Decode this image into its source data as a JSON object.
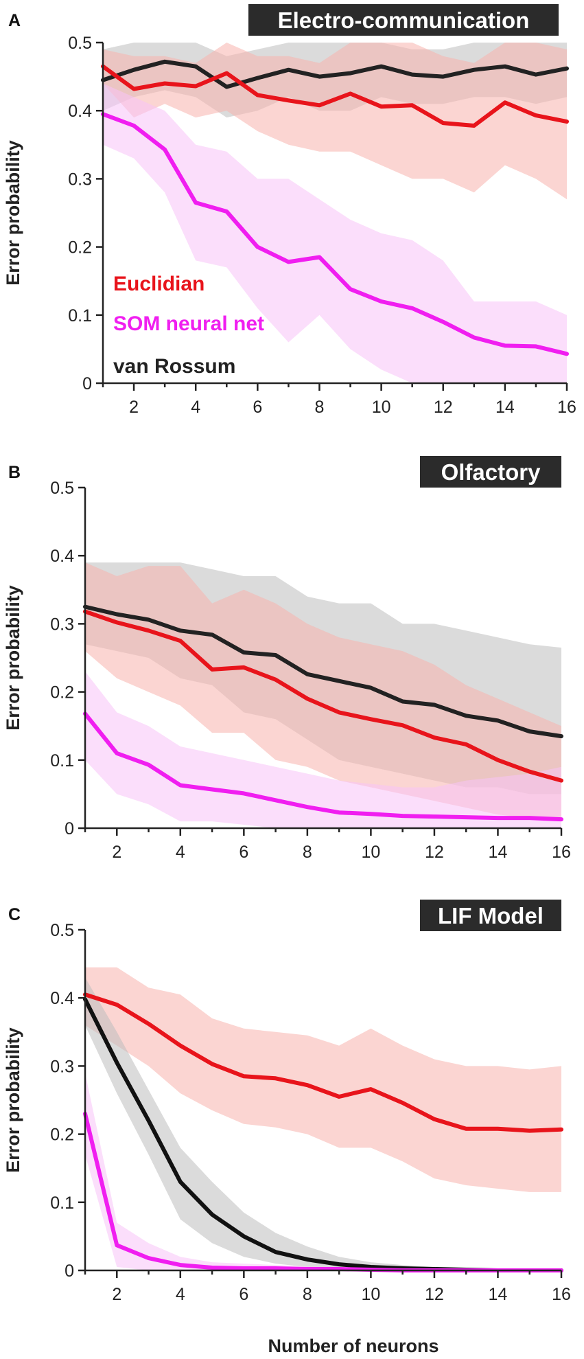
{
  "figure": {
    "xlabel": "Number of neurons",
    "legend": [
      {
        "label": "Euclidian",
        "color": "#e8141b"
      },
      {
        "label": "SOM neural net",
        "color": "#f01ef0"
      },
      {
        "label": "van Rossum",
        "color": "#222222"
      }
    ]
  },
  "chart_data": [
    {
      "type": "line",
      "panel": "A",
      "title": "Electro-communication",
      "xlabel": "",
      "ylabel": "Error probability",
      "xlim": [
        1,
        16
      ],
      "ylim": [
        0,
        0.5
      ],
      "xticks": [
        2,
        4,
        6,
        8,
        10,
        12,
        14,
        16
      ],
      "yticks": [
        0,
        0.1,
        0.2,
        0.3,
        0.4,
        0.5
      ],
      "x": [
        1,
        2,
        3,
        4,
        5,
        6,
        7,
        8,
        9,
        10,
        11,
        12,
        13,
        14,
        15,
        16
      ],
      "series": [
        {
          "name": "van Rossum",
          "color": "#222222",
          "band_color": "#bdbdbd",
          "values": [
            0.445,
            0.46,
            0.472,
            0.465,
            0.435,
            0.448,
            0.46,
            0.45,
            0.455,
            0.465,
            0.453,
            0.45,
            0.46,
            0.465,
            0.453,
            0.462
          ],
          "lower": [
            0.4,
            0.42,
            0.43,
            0.42,
            0.39,
            0.4,
            0.42,
            0.4,
            0.4,
            0.42,
            0.41,
            0.41,
            0.42,
            0.42,
            0.41,
            0.42
          ],
          "upper": [
            0.49,
            0.5,
            0.5,
            0.5,
            0.48,
            0.49,
            0.5,
            0.5,
            0.5,
            0.5,
            0.49,
            0.49,
            0.5,
            0.5,
            0.5,
            0.5
          ]
        },
        {
          "name": "Euclidian",
          "color": "#e8141b",
          "band_color": "#f7b3ad",
          "values": [
            0.465,
            0.432,
            0.44,
            0.436,
            0.455,
            0.423,
            0.415,
            0.408,
            0.425,
            0.406,
            0.408,
            0.382,
            0.378,
            0.412,
            0.393,
            0.384
          ],
          "lower": [
            0.44,
            0.39,
            0.41,
            0.39,
            0.4,
            0.37,
            0.35,
            0.34,
            0.34,
            0.32,
            0.3,
            0.3,
            0.28,
            0.32,
            0.3,
            0.27
          ],
          "upper": [
            0.49,
            0.48,
            0.48,
            0.47,
            0.5,
            0.48,
            0.48,
            0.47,
            0.5,
            0.5,
            0.5,
            0.48,
            0.47,
            0.5,
            0.5,
            0.49
          ]
        },
        {
          "name": "SOM neural net",
          "color": "#f01ef0",
          "band_color": "#f8c3f8",
          "values": [
            0.395,
            0.378,
            0.343,
            0.265,
            0.252,
            0.2,
            0.178,
            0.185,
            0.138,
            0.12,
            0.11,
            0.09,
            0.067,
            0.055,
            0.054,
            0.043
          ],
          "lower": [
            0.35,
            0.33,
            0.28,
            0.18,
            0.17,
            0.11,
            0.06,
            0.1,
            0.05,
            0.02,
            0.0,
            0.0,
            0.0,
            0.0,
            0.0,
            0.0
          ],
          "upper": [
            0.44,
            0.42,
            0.4,
            0.35,
            0.34,
            0.3,
            0.3,
            0.27,
            0.24,
            0.22,
            0.21,
            0.18,
            0.12,
            0.12,
            0.12,
            0.1
          ]
        }
      ]
    },
    {
      "type": "line",
      "panel": "B",
      "title": "Olfactory",
      "xlabel": "",
      "ylabel": "Error probability",
      "xlim": [
        1,
        16
      ],
      "ylim": [
        0,
        0.5
      ],
      "xticks": [
        2,
        4,
        6,
        8,
        10,
        12,
        14,
        16
      ],
      "yticks": [
        0,
        0.1,
        0.2,
        0.3,
        0.4,
        0.5
      ],
      "x": [
        1,
        2,
        3,
        4,
        5,
        6,
        7,
        8,
        9,
        10,
        11,
        12,
        13,
        14,
        15,
        16
      ],
      "series": [
        {
          "name": "van Rossum",
          "color": "#222222",
          "band_color": "#bdbdbd",
          "values": [
            0.325,
            0.314,
            0.306,
            0.29,
            0.284,
            0.258,
            0.254,
            0.226,
            0.216,
            0.206,
            0.186,
            0.181,
            0.165,
            0.158,
            0.142,
            0.135
          ],
          "lower": [
            0.27,
            0.26,
            0.25,
            0.22,
            0.21,
            0.17,
            0.16,
            0.13,
            0.1,
            0.09,
            0.08,
            0.07,
            0.06,
            0.06,
            0.05,
            0.05
          ],
          "upper": [
            0.39,
            0.39,
            0.39,
            0.39,
            0.38,
            0.37,
            0.37,
            0.34,
            0.33,
            0.33,
            0.3,
            0.3,
            0.29,
            0.28,
            0.27,
            0.265
          ]
        },
        {
          "name": "Euclidian",
          "color": "#e8141b",
          "band_color": "#f7b3ad",
          "values": [
            0.318,
            0.302,
            0.29,
            0.275,
            0.233,
            0.236,
            0.218,
            0.19,
            0.17,
            0.16,
            0.151,
            0.133,
            0.123,
            0.1,
            0.083,
            0.07
          ],
          "lower": [
            0.26,
            0.22,
            0.2,
            0.18,
            0.14,
            0.14,
            0.1,
            0.09,
            0.07,
            0.06,
            0.05,
            0.04,
            0.03,
            0.02,
            0.015,
            0.01
          ],
          "upper": [
            0.39,
            0.37,
            0.385,
            0.385,
            0.33,
            0.35,
            0.33,
            0.3,
            0.28,
            0.27,
            0.26,
            0.24,
            0.21,
            0.19,
            0.17,
            0.15
          ]
        },
        {
          "name": "SOM neural net",
          "color": "#f01ef0",
          "band_color": "#f8c3f8",
          "values": [
            0.168,
            0.11,
            0.093,
            0.063,
            0.057,
            0.051,
            0.041,
            0.031,
            0.023,
            0.021,
            0.018,
            0.017,
            0.016,
            0.015,
            0.015,
            0.013
          ],
          "lower": [
            0.1,
            0.05,
            0.035,
            0.01,
            0.01,
            0.005,
            0.0,
            0.0,
            0.0,
            0.0,
            0.0,
            0.0,
            0.0,
            0.0,
            0.0,
            0.0
          ],
          "upper": [
            0.23,
            0.17,
            0.15,
            0.12,
            0.11,
            0.1,
            0.09,
            0.08,
            0.07,
            0.065,
            0.06,
            0.06,
            0.07,
            0.075,
            0.08,
            0.09
          ]
        }
      ]
    },
    {
      "type": "line",
      "panel": "C",
      "title": "LIF Model",
      "xlabel": "Number of neurons",
      "ylabel": "Error probability",
      "xlim": [
        1,
        16
      ],
      "ylim": [
        0,
        0.5
      ],
      "xticks": [
        2,
        4,
        6,
        8,
        10,
        12,
        14,
        16
      ],
      "yticks": [
        0,
        0.1,
        0.2,
        0.3,
        0.4,
        0.5
      ],
      "x": [
        1,
        2,
        3,
        4,
        5,
        6,
        7,
        8,
        9,
        10,
        11,
        12,
        13,
        14,
        15,
        16
      ],
      "series": [
        {
          "name": "Euclidian",
          "color": "#e8141b",
          "band_color": "#f7b3ad",
          "values": [
            0.405,
            0.39,
            0.362,
            0.33,
            0.303,
            0.285,
            0.282,
            0.272,
            0.255,
            0.266,
            0.246,
            0.222,
            0.208,
            0.208,
            0.205,
            0.207
          ],
          "lower": [
            0.36,
            0.33,
            0.3,
            0.26,
            0.235,
            0.215,
            0.21,
            0.2,
            0.18,
            0.18,
            0.16,
            0.135,
            0.125,
            0.12,
            0.115,
            0.115
          ],
          "upper": [
            0.445,
            0.445,
            0.415,
            0.405,
            0.37,
            0.355,
            0.35,
            0.345,
            0.33,
            0.355,
            0.33,
            0.31,
            0.3,
            0.3,
            0.295,
            0.3
          ]
        },
        {
          "name": "van Rossum",
          "color": "#111111",
          "band_color": "#bdbdbd",
          "values": [
            0.398,
            0.305,
            0.22,
            0.13,
            0.082,
            0.05,
            0.027,
            0.016,
            0.009,
            0.005,
            0.003,
            0.002,
            0.001,
            0.0,
            0.0,
            0.0
          ],
          "lower": [
            0.36,
            0.26,
            0.17,
            0.075,
            0.04,
            0.02,
            0.01,
            0.005,
            0.002,
            0.0,
            0.0,
            0.0,
            0.0,
            0.0,
            0.0,
            0.0
          ],
          "upper": [
            0.43,
            0.35,
            0.265,
            0.18,
            0.13,
            0.085,
            0.055,
            0.035,
            0.02,
            0.012,
            0.008,
            0.005,
            0.003,
            0.002,
            0.002,
            0.002
          ]
        },
        {
          "name": "SOM neural net",
          "color": "#f01ef0",
          "band_color": "#f8c3f8",
          "values": [
            0.23,
            0.037,
            0.018,
            0.008,
            0.004,
            0.003,
            0.003,
            0.002,
            0.002,
            0.001,
            0.0,
            0.0,
            0.0,
            0.0,
            0.0,
            0.0
          ],
          "lower": [
            0.17,
            0.005,
            0.0,
            0.0,
            0.0,
            0.0,
            0.0,
            0.0,
            0.0,
            0.0,
            0.0,
            0.0,
            0.0,
            0.0,
            0.0,
            0.0
          ],
          "upper": [
            0.29,
            0.07,
            0.04,
            0.02,
            0.012,
            0.01,
            0.008,
            0.006,
            0.005,
            0.004,
            0.002,
            0.002,
            0.001,
            0.001,
            0.001,
            0.001
          ]
        }
      ]
    }
  ]
}
